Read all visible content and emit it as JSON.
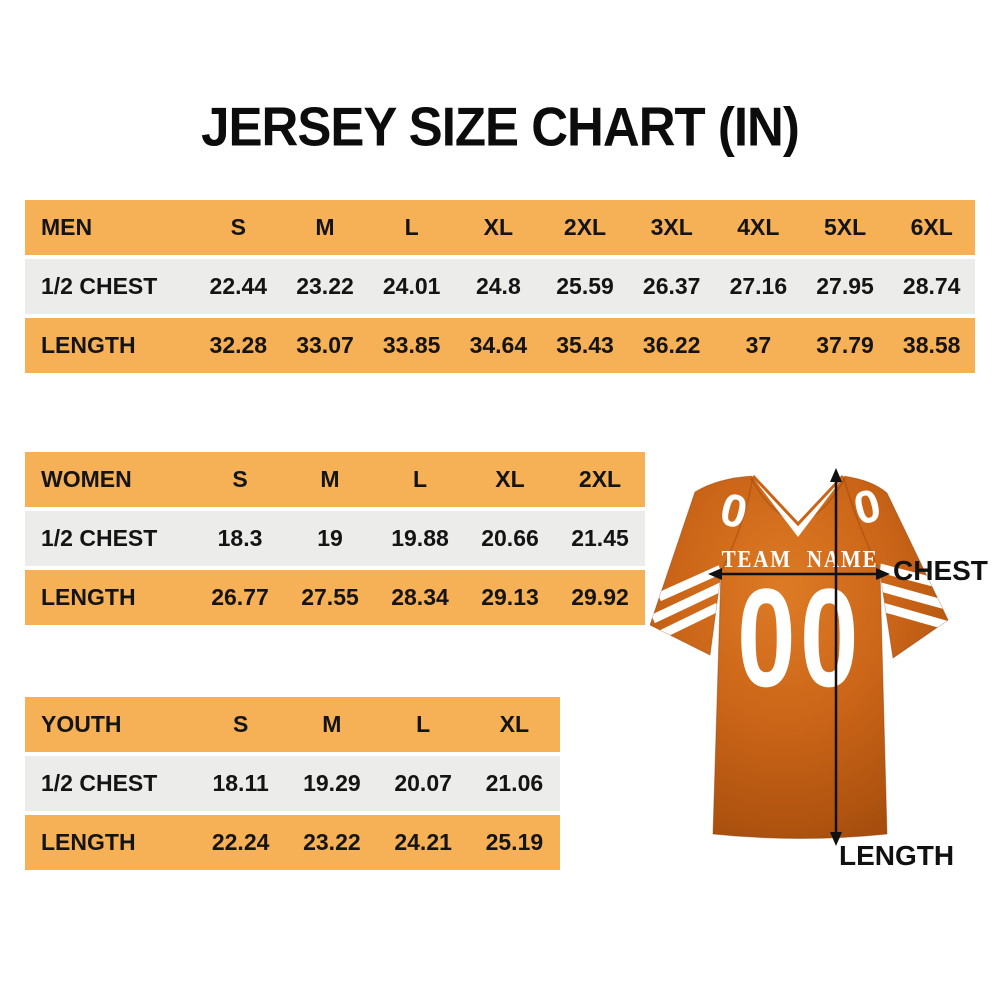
{
  "title": "JERSEY SIZE CHART (IN)",
  "colors": {
    "band_orange": "#F6B055",
    "row_gray": "#ECECEA",
    "jersey_orange": "#C96417",
    "jersey_dark": "#9D480C",
    "text_black": "#0c0c0c",
    "white": "#ffffff"
  },
  "tables": [
    {
      "id": "men",
      "label": "MEN",
      "sizes": [
        "S",
        "M",
        "L",
        "XL",
        "2XL",
        "3XL",
        "4XL",
        "5XL",
        "6XL"
      ],
      "rows": [
        {
          "label": "1/2 CHEST",
          "values": [
            "22.44",
            "23.22",
            "24.01",
            "24.8",
            "25.59",
            "26.37",
            "27.16",
            "27.95",
            "28.74"
          ]
        },
        {
          "label": "LENGTH",
          "values": [
            "32.28",
            "33.07",
            "33.85",
            "34.64",
            "35.43",
            "36.22",
            "37",
            "37.79",
            "38.58"
          ]
        }
      ]
    },
    {
      "id": "women",
      "label": "WOMEN",
      "sizes": [
        "S",
        "M",
        "L",
        "XL",
        "2XL"
      ],
      "rows": [
        {
          "label": "1/2 CHEST",
          "values": [
            "18.3",
            "19",
            "19.88",
            "20.66",
            "21.45"
          ]
        },
        {
          "label": "LENGTH",
          "values": [
            "26.77",
            "27.55",
            "28.34",
            "29.13",
            "29.92"
          ]
        }
      ]
    },
    {
      "id": "youth",
      "label": "YOUTH",
      "sizes": [
        "S",
        "M",
        "L",
        "XL"
      ],
      "rows": [
        {
          "label": "1/2 CHEST",
          "values": [
            "18.11",
            "19.29",
            "20.07",
            "21.06"
          ]
        },
        {
          "label": "LENGTH",
          "values": [
            "22.24",
            "23.22",
            "24.21",
            "25.19"
          ]
        }
      ]
    }
  ],
  "jersey": {
    "team_name": "TEAM NAME",
    "number": "00",
    "shoulder_number": "0",
    "chest_label": "CHEST",
    "length_label": "LENGTH"
  }
}
